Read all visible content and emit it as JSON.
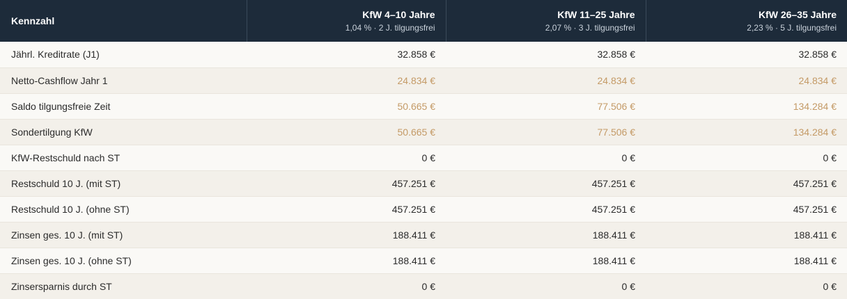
{
  "header": {
    "label": "Kennzahl",
    "columns": [
      {
        "title": "KfW 4–10 Jahre",
        "subtitle": "1,04 % · 2 J. tilgungsfrei"
      },
      {
        "title": "KfW 11–25 Jahre",
        "subtitle": "2,07 % · 3 J. tilgungsfrei"
      },
      {
        "title": "KfW 26–35 Jahre",
        "subtitle": "2,23 % · 5 J. tilgungsfrei"
      }
    ]
  },
  "colors": {
    "header_bg": "#1d2b3a",
    "accent_value": "#c49a66",
    "row_alt": "#f3f0ea"
  },
  "rows": [
    {
      "label": "Jährl. Kreditrate (J1)",
      "values": [
        "32.858 €",
        "32.858 €",
        "32.858 €"
      ],
      "accent": false
    },
    {
      "label": "Netto-Cashflow Jahr 1",
      "values": [
        "24.834 €",
        "24.834 €",
        "24.834 €"
      ],
      "accent": true
    },
    {
      "label": "Saldo tilgungsfreie Zeit",
      "values": [
        "50.665 €",
        "77.506 €",
        "134.284 €"
      ],
      "accent": true
    },
    {
      "label": "Sondertilgung KfW",
      "values": [
        "50.665 €",
        "77.506 €",
        "134.284 €"
      ],
      "accent": true
    },
    {
      "label": "KfW-Restschuld nach ST",
      "values": [
        "0 €",
        "0 €",
        "0 €"
      ],
      "accent": false
    },
    {
      "label": "Restschuld 10 J. (mit ST)",
      "values": [
        "457.251 €",
        "457.251 €",
        "457.251 €"
      ],
      "accent": false
    },
    {
      "label": "Restschuld 10 J. (ohne ST)",
      "values": [
        "457.251 €",
        "457.251 €",
        "457.251 €"
      ],
      "accent": false
    },
    {
      "label": "Zinsen ges. 10 J. (mit ST)",
      "values": [
        "188.411 €",
        "188.411 €",
        "188.411 €"
      ],
      "accent": false
    },
    {
      "label": "Zinsen ges. 10 J. (ohne ST)",
      "values": [
        "188.411 €",
        "188.411 €",
        "188.411 €"
      ],
      "accent": false
    },
    {
      "label": "Zinsersparnis durch ST",
      "values": [
        "0 €",
        "0 €",
        "0 €"
      ],
      "accent": false
    }
  ]
}
